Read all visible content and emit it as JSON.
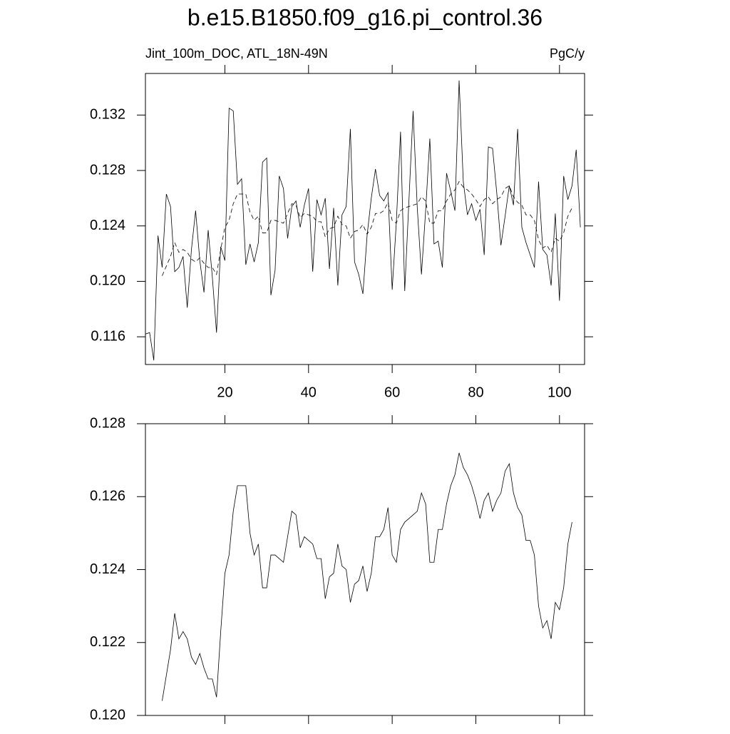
{
  "chart_data": [
    {
      "type": "line",
      "title": "b.e15.B1850.f09_g16.pi_control.36",
      "left_label": "Jint_100m_DOC, ATL_18N-49N",
      "right_label": "PgC/y",
      "xlim": [
        1,
        106
      ],
      "xticks": [
        20,
        40,
        60,
        80,
        100
      ],
      "ylim": [
        0.114,
        0.135
      ],
      "yticks": [
        0.116,
        {
          "value": 0.12,
          "label": "0.120"
        },
        0.124,
        0.128,
        0.132
      ],
      "series": [
        {
          "color": "#000000",
          "dashed": false,
          "x": [
            1,
            2,
            3,
            4,
            5,
            6,
            7,
            8,
            9,
            10,
            11,
            12,
            13,
            14,
            15,
            16,
            17,
            18,
            19,
            20,
            21,
            22,
            23,
            24,
            25,
            26,
            27,
            28,
            29,
            30,
            31,
            32,
            33,
            34,
            35,
            36,
            37,
            38,
            39,
            40,
            41,
            42,
            43,
            44,
            45,
            46,
            47,
            48,
            49,
            50,
            51,
            52,
            53,
            54,
            55,
            56,
            57,
            58,
            59,
            60,
            61,
            62,
            63,
            64,
            65,
            66,
            67,
            68,
            69,
            70,
            71,
            72,
            73,
            74,
            75,
            76,
            77,
            78,
            79,
            80,
            81,
            82,
            83,
            84,
            85,
            86,
            87,
            88,
            89,
            90,
            91,
            92,
            93,
            94,
            95,
            96,
            97,
            98,
            99,
            100,
            101,
            102,
            103,
            104,
            105
          ],
          "values": [
            0.1162,
            0.1163,
            0.1143,
            0.1233,
            0.121,
            0.1263,
            0.1254,
            0.1207,
            0.121,
            0.1218,
            0.1181,
            0.1223,
            0.1251,
            0.1215,
            0.1192,
            0.1237,
            0.1203,
            0.1163,
            0.1225,
            0.1215,
            0.1325,
            0.1323,
            0.127,
            0.1274,
            0.1212,
            0.1227,
            0.1214,
            0.1228,
            0.1286,
            0.1289,
            0.119,
            0.1208,
            0.1276,
            0.1267,
            0.1231,
            0.1254,
            0.1258,
            0.1239,
            0.1255,
            0.1267,
            0.1207,
            0.1259,
            0.1248,
            0.126,
            0.1209,
            0.1253,
            0.1197,
            0.1248,
            0.1254,
            0.131,
            0.1214,
            0.1205,
            0.1191,
            0.1233,
            0.126,
            0.1281,
            0.1262,
            0.1258,
            0.1264,
            0.1194,
            0.1243,
            0.1308,
            0.1193,
            0.1258,
            0.1323,
            0.1253,
            0.1205,
            0.1251,
            0.1303,
            0.1227,
            0.1229,
            0.121,
            0.1278,
            0.1265,
            0.1251,
            0.1345,
            0.1272,
            0.1248,
            0.1256,
            0.1244,
            0.1252,
            0.1219,
            0.1297,
            0.1296,
            0.1264,
            0.1226,
            0.1247,
            0.1269,
            0.1255,
            0.131,
            0.1239,
            0.1228,
            0.1219,
            0.121,
            0.1272,
            0.1223,
            0.1219,
            0.1197,
            0.1249,
            0.1186,
            0.1276,
            0.1259,
            0.1269,
            0.1295,
            0.1239
          ]
        },
        {
          "color": "#000000",
          "dashed": true,
          "x": [
            5,
            6,
            7,
            8,
            9,
            10,
            11,
            12,
            13,
            14,
            15,
            16,
            17,
            18,
            19,
            20,
            21,
            22,
            23,
            24,
            25,
            26,
            27,
            28,
            29,
            30,
            31,
            32,
            33,
            34,
            35,
            36,
            37,
            38,
            39,
            40,
            41,
            42,
            43,
            44,
            45,
            46,
            47,
            48,
            49,
            50,
            51,
            52,
            53,
            54,
            55,
            56,
            57,
            58,
            59,
            60,
            61,
            62,
            63,
            64,
            65,
            66,
            67,
            68,
            69,
            70,
            71,
            72,
            73,
            74,
            75,
            76,
            77,
            78,
            79,
            80,
            81,
            82,
            83,
            84,
            85,
            86,
            87,
            88,
            89,
            90,
            91,
            92,
            93,
            94,
            95,
            96,
            97,
            98,
            99,
            100,
            101,
            102,
            103
          ],
          "values": [
            0.1204,
            0.1211,
            0.1218,
            0.1228,
            0.1221,
            0.1223,
            0.1221,
            0.1216,
            0.1214,
            0.1217,
            0.1213,
            0.121,
            0.121,
            0.1205,
            0.1223,
            0.1239,
            0.1244,
            0.1256,
            0.1263,
            0.1263,
            0.1263,
            0.125,
            0.1244,
            0.1247,
            0.1235,
            0.1235,
            0.1244,
            0.1244,
            0.1243,
            0.1242,
            0.1249,
            0.1256,
            0.1255,
            0.1246,
            0.1249,
            0.1248,
            0.1247,
            0.1243,
            0.1243,
            0.1232,
            0.1238,
            0.1239,
            0.1247,
            0.1241,
            0.124,
            0.1231,
            0.1236,
            0.1237,
            0.1241,
            0.1234,
            0.1239,
            0.1249,
            0.1249,
            0.1251,
            0.1257,
            0.1244,
            0.1242,
            0.1251,
            0.1253,
            0.1254,
            0.1255,
            0.1256,
            0.1261,
            0.1258,
            0.1242,
            0.1242,
            0.1251,
            0.1251,
            0.1258,
            0.1263,
            0.1266,
            0.1272,
            0.1268,
            0.1266,
            0.1263,
            0.1259,
            0.1254,
            0.1259,
            0.1261,
            0.1256,
            0.1259,
            0.1261,
            0.1267,
            0.1269,
            0.1261,
            0.1257,
            0.1255,
            0.1248,
            0.1248,
            0.1244,
            0.123,
            0.1224,
            0.1226,
            0.1221,
            0.1231,
            0.1229,
            0.1235,
            0.1247,
            0.1253
          ]
        }
      ]
    },
    {
      "type": "line",
      "xlim": [
        1,
        106
      ],
      "xticks": [
        20,
        40,
        60,
        80,
        100
      ],
      "ylim": [
        0.12,
        0.128
      ],
      "yticks": [
        {
          "value": 0.12,
          "label": "0.120"
        },
        0.122,
        0.124,
        0.126,
        0.128
      ],
      "series": [
        {
          "color": "#000000",
          "dashed": false,
          "x": [
            5,
            6,
            7,
            8,
            9,
            10,
            11,
            12,
            13,
            14,
            15,
            16,
            17,
            18,
            19,
            20,
            21,
            22,
            23,
            24,
            25,
            26,
            27,
            28,
            29,
            30,
            31,
            32,
            33,
            34,
            35,
            36,
            37,
            38,
            39,
            40,
            41,
            42,
            43,
            44,
            45,
            46,
            47,
            48,
            49,
            50,
            51,
            52,
            53,
            54,
            55,
            56,
            57,
            58,
            59,
            60,
            61,
            62,
            63,
            64,
            65,
            66,
            67,
            68,
            69,
            70,
            71,
            72,
            73,
            74,
            75,
            76,
            77,
            78,
            79,
            80,
            81,
            82,
            83,
            84,
            85,
            86,
            87,
            88,
            89,
            90,
            91,
            92,
            93,
            94,
            95,
            96,
            97,
            98,
            99,
            100,
            101,
            102,
            103
          ],
          "values": [
            0.1204,
            0.1211,
            0.1218,
            0.1228,
            0.1221,
            0.1223,
            0.1221,
            0.1216,
            0.1214,
            0.1217,
            0.1213,
            0.121,
            0.121,
            0.1205,
            0.1223,
            0.1239,
            0.1244,
            0.1256,
            0.1263,
            0.1263,
            0.1263,
            0.125,
            0.1244,
            0.1247,
            0.1235,
            0.1235,
            0.1244,
            0.1244,
            0.1243,
            0.1242,
            0.1249,
            0.1256,
            0.1255,
            0.1246,
            0.1249,
            0.1248,
            0.1247,
            0.1243,
            0.1243,
            0.1232,
            0.1238,
            0.1239,
            0.1247,
            0.1241,
            0.124,
            0.1231,
            0.1236,
            0.1237,
            0.1241,
            0.1234,
            0.1239,
            0.1249,
            0.1249,
            0.1251,
            0.1257,
            0.1244,
            0.1242,
            0.1251,
            0.1253,
            0.1254,
            0.1255,
            0.1256,
            0.1261,
            0.1258,
            0.1242,
            0.1242,
            0.1251,
            0.1251,
            0.1258,
            0.1263,
            0.1266,
            0.1272,
            0.1268,
            0.1266,
            0.1263,
            0.1259,
            0.1254,
            0.1259,
            0.1261,
            0.1256,
            0.1259,
            0.1261,
            0.1267,
            0.1269,
            0.1261,
            0.1257,
            0.1255,
            0.1248,
            0.1248,
            0.1244,
            0.123,
            0.1224,
            0.1226,
            0.1221,
            0.1231,
            0.1229,
            0.1235,
            0.1247,
            0.1253
          ]
        }
      ]
    }
  ]
}
